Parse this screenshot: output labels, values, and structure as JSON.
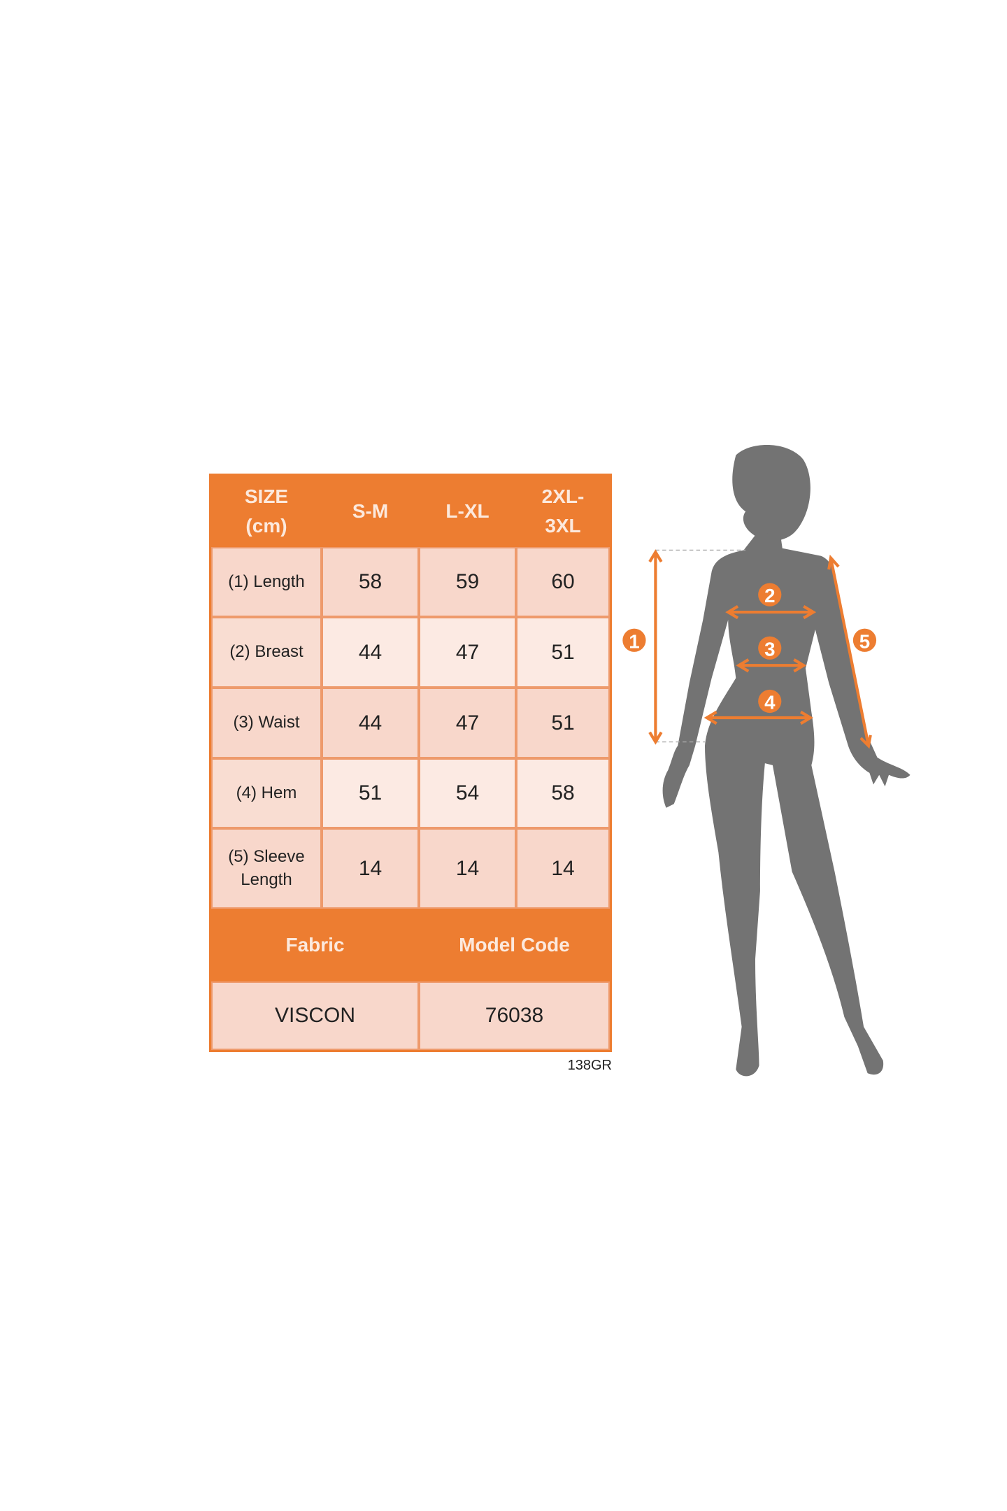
{
  "table": {
    "header": [
      "SIZE\n(cm)",
      "S-M",
      "L-XL",
      "2XL-\n3XL"
    ],
    "rows": [
      {
        "label": "(1) Length",
        "values": [
          "58",
          "59",
          "60"
        ]
      },
      {
        "label": "(2) Breast",
        "values": [
          "44",
          "47",
          "51"
        ]
      },
      {
        "label": "(3) Waist",
        "values": [
          "44",
          "47",
          "51"
        ]
      },
      {
        "label": "(4) Hem",
        "values": [
          "51",
          "54",
          "58"
        ]
      },
      {
        "label": "(5) Sleeve\nLength",
        "values": [
          "14",
          "14",
          "14"
        ]
      }
    ],
    "footer_headers": [
      "Fabric",
      "Model Code"
    ],
    "footer_values": [
      "VISCON",
      "76038"
    ]
  },
  "code_tag": "138GR",
  "figure": {
    "markers": [
      "1",
      "2",
      "3",
      "4",
      "5"
    ]
  },
  "colors": {
    "accent": "#ED7D31",
    "silhouette": "#737373",
    "cell": "#F8D7CB",
    "cell_light": "#FCEAE3"
  }
}
